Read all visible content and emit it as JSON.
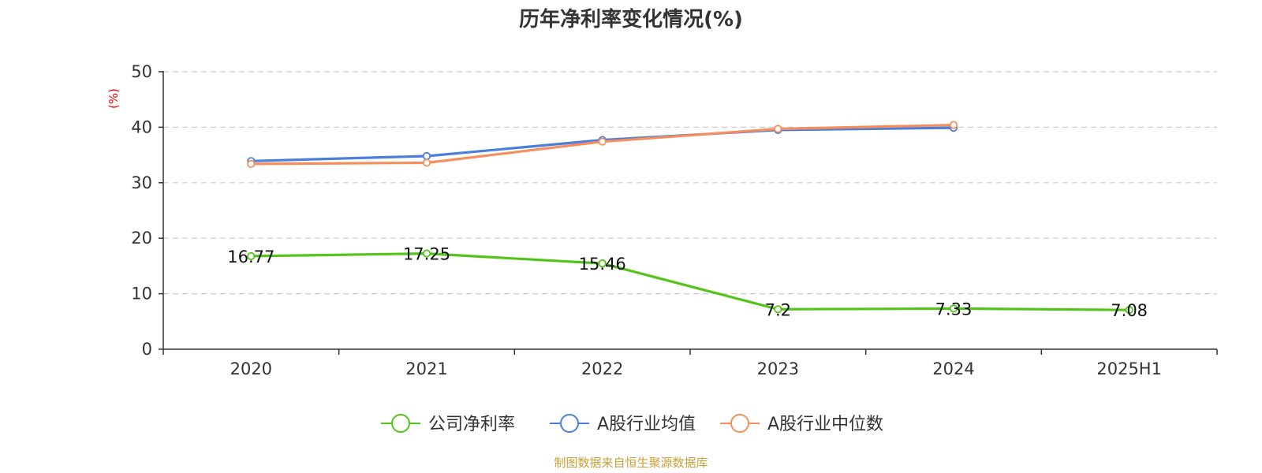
{
  "chart_data": {
    "type": "line",
    "title": "历年净利率变化情况(%)",
    "ylabel": "(%)",
    "xlabel": "",
    "categories": [
      "2020",
      "2021",
      "2022",
      "2023",
      "2024",
      "2025H1"
    ],
    "ylim": [
      0,
      50
    ],
    "yticks": [
      0,
      10,
      20,
      30,
      40,
      50
    ],
    "grid": true,
    "legend_position": "bottom",
    "series": [
      {
        "name": "公司净利率",
        "color": "#52c41a",
        "values": [
          16.77,
          17.25,
          15.46,
          7.2,
          7.33,
          7.08
        ],
        "labels": [
          "16.77",
          "17.25",
          "15.46",
          "7.2",
          "7.33",
          "7.08"
        ],
        "show_labels": true
      },
      {
        "name": "A股行业均值",
        "color": "#4a7fdc",
        "values": [
          33.9,
          34.8,
          37.7,
          39.5,
          39.9,
          null
        ],
        "show_labels": false
      },
      {
        "name": "A股行业中位数",
        "color": "#f58e5d",
        "values": [
          33.4,
          33.6,
          37.4,
          39.7,
          40.4,
          null
        ],
        "show_labels": false
      }
    ]
  },
  "source_note": "制图数据来自恒生聚源数据库",
  "colors": {
    "ylabel": "#ff0000",
    "source": "#c9a13b",
    "axis": "#333333",
    "grid": "#cccccc"
  }
}
